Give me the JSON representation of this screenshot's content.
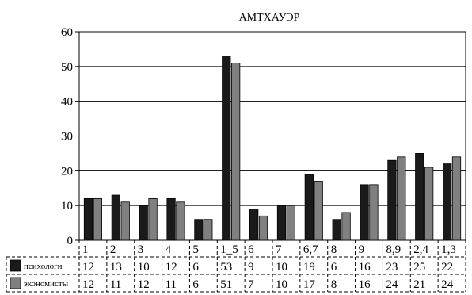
{
  "chart_data": {
    "type": "bar",
    "title": "АМТХАУЭР",
    "categories": [
      "1",
      "2",
      "3",
      "4",
      "5",
      "1_5",
      "6",
      "7",
      "6,7",
      "8",
      "9",
      "8,9",
      "2,4",
      "1,3"
    ],
    "series": [
      {
        "name": "психологи",
        "color": "#1a1a1a",
        "values": [
          12,
          13,
          10,
          12,
          6,
          53,
          9,
          10,
          19,
          6,
          16,
          23,
          25,
          22
        ]
      },
      {
        "name": "экономисты",
        "color": "#808080",
        "values": [
          12,
          11,
          12,
          11,
          6,
          51,
          7,
          10,
          17,
          8,
          16,
          24,
          21,
          24
        ]
      }
    ],
    "ylim": [
      0,
      60
    ],
    "yticks": [
      0,
      10,
      20,
      30,
      40,
      50,
      60
    ],
    "grid": true,
    "legend": "bottom-table"
  }
}
